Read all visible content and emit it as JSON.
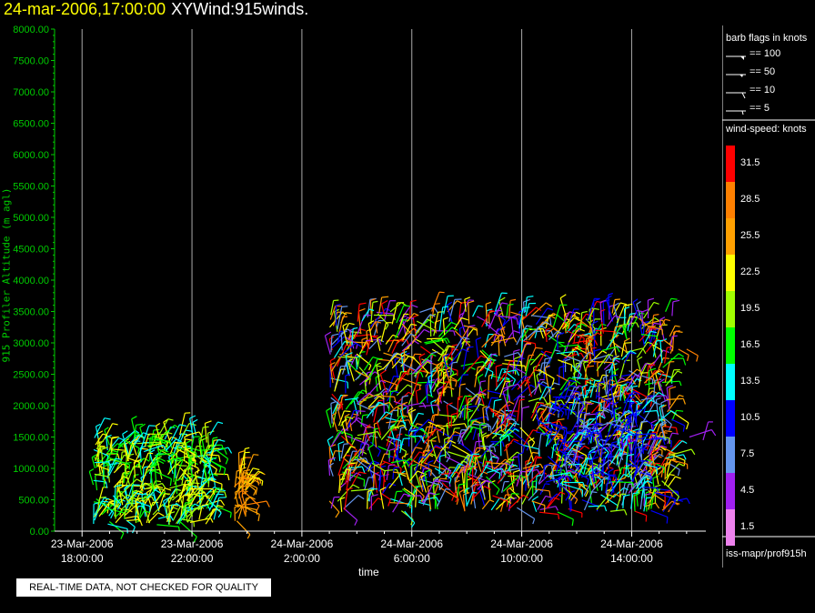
{
  "title": {
    "timestamp": "24-mar-2006,17:00:00",
    "text": "XYWind:915winds."
  },
  "notice": "REAL-TIME DATA, NOT CHECKED FOR QUALITY",
  "legend": {
    "barb_header": "barb flags in knots",
    "barb_flags": [
      "== 100",
      "== 50",
      "== 10",
      "== 5"
    ],
    "speed_header": "wind-speed: knots",
    "source": "iss-mapr/prof915h"
  },
  "colors": {
    "axis": "#00cc00",
    "gridline": "#aaaaaa",
    "background": "#000000"
  },
  "chart_data": {
    "type": "scatter",
    "title": "XYWind:915winds.",
    "xlabel": "time",
    "ylabel": "915 Profiler Altitude (m agl)",
    "ylim": [
      0,
      8000
    ],
    "y_ticks": [
      "0.00",
      "500.00",
      "1000.00",
      "1500.00",
      "2000.00",
      "2500.00",
      "3000.00",
      "3500.00",
      "4000.00",
      "4500.00",
      "5000.00",
      "5500.00",
      "6000.00",
      "6500.00",
      "7000.00",
      "7500.00",
      "8000.00"
    ],
    "x_tick_labels": [
      [
        "23-Mar-2006",
        "18:00:00"
      ],
      [
        "23-Mar-2006",
        "22:00:00"
      ],
      [
        "24-Mar-2006",
        "2:00:00"
      ],
      [
        "24-Mar-2006",
        "6:00:00"
      ],
      [
        "24-Mar-2006",
        "10:00:00"
      ],
      [
        "24-Mar-2006",
        "14:00:00"
      ]
    ],
    "x_range_hours": [
      17.0,
      40.7
    ],
    "x_tick_hours": [
      18,
      22,
      26,
      30,
      34,
      38
    ],
    "grid": "vertical",
    "legend_position": "right",
    "colorbar": [
      {
        "value": "31.5",
        "color": "#ff0000"
      },
      {
        "value": "28.5",
        "color": "#ff8000"
      },
      {
        "value": "25.5",
        "color": "#ffa000"
      },
      {
        "value": "22.5",
        "color": "#ffff00"
      },
      {
        "value": "19.5",
        "color": "#a0ff00"
      },
      {
        "value": "16.5",
        "color": "#00ff00"
      },
      {
        "value": "13.5",
        "color": "#00ffff"
      },
      {
        "value": "10.5",
        "color": "#0000ff"
      },
      {
        "value": "7.5",
        "color": "#6495ed"
      },
      {
        "value": "4.5",
        "color": "#a020f0"
      },
      {
        "value": "1.5",
        "color": "#ee82ee"
      }
    ],
    "clusters": [
      {
        "hour_start": 18.4,
        "hour_end": 22.8,
        "alt_min": 100,
        "alt_max": 1550,
        "speed_min": 12,
        "speed_max": 24,
        "count": 340
      },
      {
        "hour_start": 23.5,
        "hour_end": 24.0,
        "alt_min": 100,
        "alt_max": 1000,
        "speed_min": 23,
        "speed_max": 28,
        "count": 40
      },
      {
        "hour_start": 27.0,
        "hour_end": 39.5,
        "alt_min": 300,
        "alt_max": 3500,
        "speed_min": 3,
        "speed_max": 33,
        "count": 1300
      },
      {
        "hour_start": 34.5,
        "hour_end": 38.5,
        "alt_min": 600,
        "alt_max": 2200,
        "speed_min": 8,
        "speed_max": 14,
        "count": 150
      }
    ],
    "isolated_points": [
      {
        "hour": 39.7,
        "alt": 2900,
        "speed": 28
      },
      {
        "hour": 40.0,
        "alt": 2900,
        "speed": 28
      },
      {
        "hour": 40.1,
        "alt": 1500,
        "speed": 5
      },
      {
        "hour": 40.6,
        "alt": 1450,
        "speed": 5
      }
    ]
  }
}
